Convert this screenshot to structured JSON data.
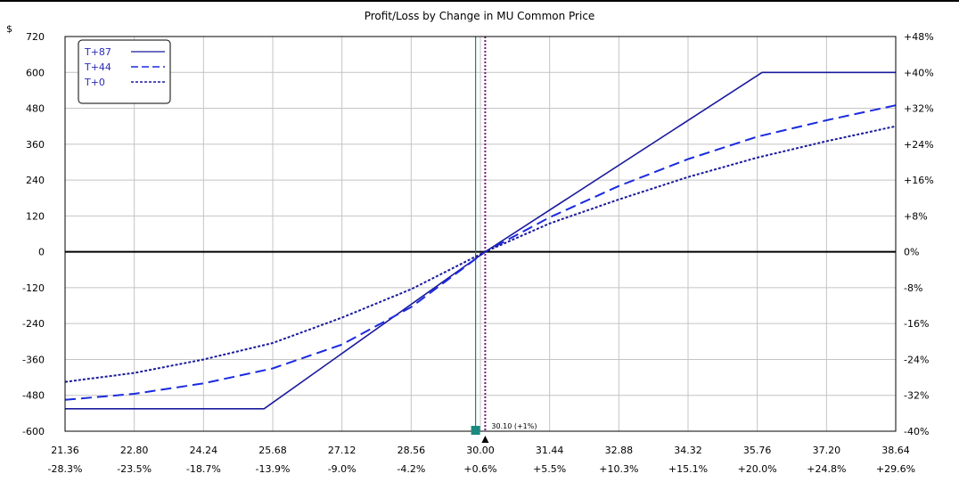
{
  "chart_data": {
    "type": "line",
    "title": "Profit/Loss by Change in MU Common Price",
    "y_unit_label": "$",
    "x_ticks": [
      "21.36",
      "22.80",
      "24.24",
      "25.68",
      "27.12",
      "28.56",
      "30.00",
      "31.44",
      "32.88",
      "34.32",
      "35.76",
      "37.20",
      "38.64"
    ],
    "x_pct_ticks": [
      "-28.3%",
      "-23.5%",
      "-18.7%",
      "-13.9%",
      "-9.0%",
      "-4.2%",
      "+0.6%",
      "+5.5%",
      "+10.3%",
      "+15.1%",
      "+20.0%",
      "+24.8%",
      "+29.6%"
    ],
    "y_ticks": [
      "720",
      "600",
      "480",
      "360",
      "240",
      "120",
      "0",
      "-120",
      "-240",
      "-360",
      "-480",
      "-600"
    ],
    "y_pct_ticks": [
      "+48%",
      "+40%",
      "+32%",
      "+24%",
      "+16%",
      "+8%",
      "0%",
      "-8%",
      "-16%",
      "-24%",
      "-32%",
      "-40%"
    ],
    "xlim": [
      21.36,
      38.64
    ],
    "ylim": [
      -600,
      720
    ],
    "legend_placement": "top-left",
    "current_price_label": "30.10 (+1%)",
    "current_price": 30.1,
    "reference_price": 29.9,
    "series": [
      {
        "name": "T+87",
        "values": [
          [
            21.36,
            -525
          ],
          [
            25.5,
            -525
          ],
          [
            30.1,
            0
          ],
          [
            35.86,
            600
          ],
          [
            38.64,
            600
          ]
        ]
      },
      {
        "name": "T+44",
        "values": [
          [
            21.36,
            -495
          ],
          [
            22.8,
            -475
          ],
          [
            24.24,
            -440
          ],
          [
            25.68,
            -390
          ],
          [
            27.12,
            -310
          ],
          [
            28.56,
            -185
          ],
          [
            30.1,
            0
          ],
          [
            31.44,
            115
          ],
          [
            32.88,
            220
          ],
          [
            34.32,
            310
          ],
          [
            35.76,
            385
          ],
          [
            37.2,
            440
          ],
          [
            38.64,
            490
          ]
        ]
      },
      {
        "name": "T+0",
        "values": [
          [
            21.36,
            -435
          ],
          [
            22.8,
            -405
          ],
          [
            24.24,
            -360
          ],
          [
            25.68,
            -305
          ],
          [
            27.12,
            -220
          ],
          [
            28.56,
            -125
          ],
          [
            30.1,
            0
          ],
          [
            31.44,
            95
          ],
          [
            32.88,
            175
          ],
          [
            34.32,
            250
          ],
          [
            35.76,
            315
          ],
          [
            37.2,
            370
          ],
          [
            38.64,
            420
          ]
        ]
      }
    ],
    "grid": true,
    "colors": {
      "line": "#1a1a9c",
      "dash": "#1a2ae0",
      "current": "#7a1a7a",
      "reference": "#0c8a74"
    }
  }
}
